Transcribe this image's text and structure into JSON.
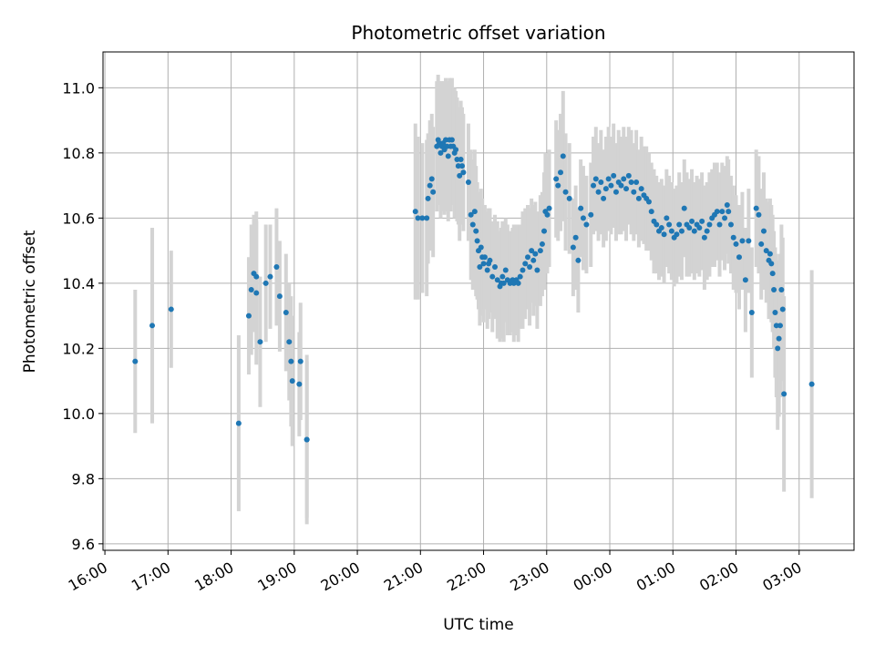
{
  "chart_data": {
    "type": "scatter",
    "title": "Photometric offset variation",
    "xlabel": "UTC time",
    "ylabel": "Photometric offset",
    "x_unit": "UTC time (hours; values past 24 are after midnight)",
    "xlim": [
      15.97,
      27.87
    ],
    "ylim": [
      9.58,
      11.11
    ],
    "yticks": [
      9.6,
      9.8,
      10.0,
      10.2,
      10.4,
      10.6,
      10.8,
      11.0
    ],
    "xticks": [
      {
        "value": 16,
        "label": "16:00"
      },
      {
        "value": 17,
        "label": "17:00"
      },
      {
        "value": 18,
        "label": "18:00"
      },
      {
        "value": 19,
        "label": "19:00"
      },
      {
        "value": 20,
        "label": "20:00"
      },
      {
        "value": 21,
        "label": "21:00"
      },
      {
        "value": 22,
        "label": "22:00"
      },
      {
        "value": 23,
        "label": "23:00"
      },
      {
        "value": 24,
        "label": "00:00"
      },
      {
        "value": 25,
        "label": "01:00"
      },
      {
        "value": 26,
        "label": "02:00"
      },
      {
        "value": 27,
        "label": "03:00"
      }
    ],
    "grid": true,
    "series_color": "#1f77b4",
    "errorbar_color": "#d3d3d3",
    "points": [
      [
        16.48,
        10.16,
        0.22
      ],
      [
        16.75,
        10.27,
        0.3
      ],
      [
        17.05,
        10.32,
        0.18
      ],
      [
        18.12,
        9.97,
        0.27
      ],
      [
        18.28,
        10.3,
        0.18
      ],
      [
        18.32,
        10.38,
        0.2
      ],
      [
        18.36,
        10.43,
        0.18
      ],
      [
        18.4,
        10.42,
        0.2
      ],
      [
        18.4,
        10.37,
        0.22
      ],
      [
        18.46,
        10.22,
        0.2
      ],
      [
        18.55,
        10.4,
        0.18
      ],
      [
        18.62,
        10.42,
        0.16
      ],
      [
        18.72,
        10.45,
        0.18
      ],
      [
        18.77,
        10.36,
        0.17
      ],
      [
        18.87,
        10.31,
        0.18
      ],
      [
        18.92,
        10.22,
        0.18
      ],
      [
        18.95,
        10.16,
        0.2
      ],
      [
        18.97,
        10.1,
        0.2
      ],
      [
        19.08,
        10.09,
        0.16
      ],
      [
        19.1,
        10.16,
        0.18
      ],
      [
        19.2,
        9.92,
        0.24
      ],
      [
        19.2,
        9.92,
        0.26
      ],
      [
        20.92,
        10.62,
        0.27
      ],
      [
        20.96,
        10.6,
        0.25
      ],
      [
        21.03,
        10.6,
        0.23
      ],
      [
        21.1,
        10.6,
        0.24
      ],
      [
        21.12,
        10.66,
        0.2
      ],
      [
        21.15,
        10.7,
        0.2
      ],
      [
        21.18,
        10.72,
        0.2
      ],
      [
        21.2,
        10.68,
        0.2
      ],
      [
        21.26,
        10.82,
        0.2
      ],
      [
        21.28,
        10.84,
        0.2
      ],
      [
        21.3,
        10.83,
        0.19
      ],
      [
        21.32,
        10.8,
        0.2
      ],
      [
        21.34,
        10.82,
        0.2
      ],
      [
        21.36,
        10.83,
        0.19
      ],
      [
        21.38,
        10.81,
        0.2
      ],
      [
        21.4,
        10.84,
        0.19
      ],
      [
        21.42,
        10.82,
        0.2
      ],
      [
        21.44,
        10.79,
        0.2
      ],
      [
        21.46,
        10.84,
        0.19
      ],
      [
        21.48,
        10.82,
        0.2
      ],
      [
        21.5,
        10.84,
        0.19
      ],
      [
        21.52,
        10.82,
        0.18
      ],
      [
        21.54,
        10.8,
        0.2
      ],
      [
        21.56,
        10.81,
        0.18
      ],
      [
        21.58,
        10.78,
        0.19
      ],
      [
        21.6,
        10.76,
        0.18
      ],
      [
        21.62,
        10.73,
        0.2
      ],
      [
        21.64,
        10.78,
        0.18
      ],
      [
        21.66,
        10.76,
        0.18
      ],
      [
        21.68,
        10.74,
        0.18
      ],
      [
        21.76,
        10.71,
        0.18
      ],
      [
        21.8,
        10.61,
        0.2
      ],
      [
        21.83,
        10.58,
        0.2
      ],
      [
        21.86,
        10.62,
        0.19
      ],
      [
        21.88,
        10.56,
        0.2
      ],
      [
        21.9,
        10.53,
        0.18
      ],
      [
        21.92,
        10.5,
        0.18
      ],
      [
        21.94,
        10.45,
        0.18
      ],
      [
        21.96,
        10.51,
        0.18
      ],
      [
        21.98,
        10.48,
        0.18
      ],
      [
        22.0,
        10.46,
        0.18
      ],
      [
        22.02,
        10.48,
        0.16
      ],
      [
        22.06,
        10.44,
        0.18
      ],
      [
        22.08,
        10.46,
        0.17
      ],
      [
        22.1,
        10.47,
        0.16
      ],
      [
        22.14,
        10.42,
        0.17
      ],
      [
        22.18,
        10.45,
        0.16
      ],
      [
        22.22,
        10.41,
        0.18
      ],
      [
        22.26,
        10.39,
        0.17
      ],
      [
        22.28,
        10.4,
        0.17
      ],
      [
        22.3,
        10.42,
        0.17
      ],
      [
        22.32,
        10.4,
        0.18
      ],
      [
        22.35,
        10.44,
        0.16
      ],
      [
        22.38,
        10.41,
        0.17
      ],
      [
        22.42,
        10.4,
        0.16
      ],
      [
        22.46,
        10.41,
        0.16
      ],
      [
        22.48,
        10.4,
        0.18
      ],
      [
        22.52,
        10.41,
        0.17
      ],
      [
        22.55,
        10.4,
        0.18
      ],
      [
        22.58,
        10.42,
        0.16
      ],
      [
        22.62,
        10.44,
        0.18
      ],
      [
        22.66,
        10.46,
        0.17
      ],
      [
        22.7,
        10.48,
        0.16
      ],
      [
        22.73,
        10.45,
        0.18
      ],
      [
        22.76,
        10.5,
        0.16
      ],
      [
        22.79,
        10.47,
        0.17
      ],
      [
        22.82,
        10.49,
        0.16
      ],
      [
        22.85,
        10.44,
        0.18
      ],
      [
        22.9,
        10.5,
        0.17
      ],
      [
        22.93,
        10.52,
        0.16
      ],
      [
        22.96,
        10.56,
        0.18
      ],
      [
        22.98,
        10.62,
        0.18
      ],
      [
        23.01,
        10.61,
        0.18
      ],
      [
        23.04,
        10.63,
        0.18
      ],
      [
        23.15,
        10.72,
        0.18
      ],
      [
        23.18,
        10.7,
        0.17
      ],
      [
        23.22,
        10.74,
        0.18
      ],
      [
        23.26,
        10.79,
        0.2
      ],
      [
        23.3,
        10.68,
        0.18
      ],
      [
        23.36,
        10.66,
        0.17
      ],
      [
        23.42,
        10.51,
        0.15
      ],
      [
        23.46,
        10.54,
        0.16
      ],
      [
        23.5,
        10.47,
        0.16
      ],
      [
        23.54,
        10.63,
        0.15
      ],
      [
        23.58,
        10.6,
        0.16
      ],
      [
        23.63,
        10.58,
        0.15
      ],
      [
        23.7,
        10.61,
        0.16
      ],
      [
        23.74,
        10.7,
        0.15
      ],
      [
        23.78,
        10.72,
        0.16
      ],
      [
        23.82,
        10.68,
        0.15
      ],
      [
        23.86,
        10.71,
        0.16
      ],
      [
        23.9,
        10.66,
        0.15
      ],
      [
        23.94,
        10.69,
        0.16
      ],
      [
        23.98,
        10.72,
        0.16
      ],
      [
        24.02,
        10.7,
        0.15
      ],
      [
        24.06,
        10.73,
        0.16
      ],
      [
        24.1,
        10.68,
        0.15
      ],
      [
        24.14,
        10.71,
        0.16
      ],
      [
        24.18,
        10.7,
        0.15
      ],
      [
        24.22,
        10.72,
        0.16
      ],
      [
        24.26,
        10.69,
        0.16
      ],
      [
        24.3,
        10.73,
        0.15
      ],
      [
        24.34,
        10.71,
        0.16
      ],
      [
        24.38,
        10.68,
        0.15
      ],
      [
        24.42,
        10.71,
        0.16
      ],
      [
        24.46,
        10.66,
        0.15
      ],
      [
        24.5,
        10.69,
        0.16
      ],
      [
        24.54,
        10.67,
        0.15
      ],
      [
        24.58,
        10.66,
        0.16
      ],
      [
        24.62,
        10.65,
        0.15
      ],
      [
        24.66,
        10.62,
        0.15
      ],
      [
        24.7,
        10.59,
        0.16
      ],
      [
        24.74,
        10.58,
        0.15
      ],
      [
        24.78,
        10.56,
        0.15
      ],
      [
        24.82,
        10.57,
        0.15
      ],
      [
        24.86,
        10.55,
        0.15
      ],
      [
        24.9,
        10.6,
        0.15
      ],
      [
        24.94,
        10.58,
        0.15
      ],
      [
        24.98,
        10.56,
        0.15
      ],
      [
        25.02,
        10.54,
        0.15
      ],
      [
        25.06,
        10.55,
        0.15
      ],
      [
        25.1,
        10.58,
        0.16
      ],
      [
        25.14,
        10.56,
        0.15
      ],
      [
        25.18,
        10.63,
        0.15
      ],
      [
        25.22,
        10.58,
        0.16
      ],
      [
        25.26,
        10.57,
        0.15
      ],
      [
        25.3,
        10.59,
        0.16
      ],
      [
        25.34,
        10.56,
        0.15
      ],
      [
        25.38,
        10.58,
        0.15
      ],
      [
        25.42,
        10.57,
        0.15
      ],
      [
        25.46,
        10.59,
        0.15
      ],
      [
        25.5,
        10.54,
        0.16
      ],
      [
        25.54,
        10.56,
        0.15
      ],
      [
        25.58,
        10.58,
        0.16
      ],
      [
        25.62,
        10.6,
        0.15
      ],
      [
        25.66,
        10.61,
        0.16
      ],
      [
        25.7,
        10.62,
        0.15
      ],
      [
        25.74,
        10.58,
        0.16
      ],
      [
        25.78,
        10.62,
        0.15
      ],
      [
        25.82,
        10.6,
        0.16
      ],
      [
        25.86,
        10.64,
        0.15
      ],
      [
        25.88,
        10.62,
        0.16
      ],
      [
        25.92,
        10.58,
        0.15
      ],
      [
        25.96,
        10.54,
        0.16
      ],
      [
        26.0,
        10.52,
        0.15
      ],
      [
        26.05,
        10.48,
        0.16
      ],
      [
        26.1,
        10.53,
        0.15
      ],
      [
        26.15,
        10.41,
        0.16
      ],
      [
        26.2,
        10.53,
        0.16
      ],
      [
        26.25,
        10.31,
        0.2
      ],
      [
        26.32,
        10.63,
        0.18
      ],
      [
        26.36,
        10.61,
        0.18
      ],
      [
        26.4,
        10.52,
        0.17
      ],
      [
        26.44,
        10.56,
        0.18
      ],
      [
        26.48,
        10.5,
        0.16
      ],
      [
        26.52,
        10.47,
        0.18
      ],
      [
        26.54,
        10.49,
        0.17
      ],
      [
        26.56,
        10.46,
        0.18
      ],
      [
        26.58,
        10.43,
        0.18
      ],
      [
        26.6,
        10.38,
        0.18
      ],
      [
        26.62,
        10.31,
        0.2
      ],
      [
        26.64,
        10.27,
        0.22
      ],
      [
        26.66,
        10.2,
        0.25
      ],
      [
        26.68,
        10.23,
        0.24
      ],
      [
        26.7,
        10.27,
        0.22
      ],
      [
        26.72,
        10.38,
        0.2
      ],
      [
        26.74,
        10.32,
        0.22
      ],
      [
        26.76,
        10.06,
        0.3
      ],
      [
        27.2,
        10.09,
        0.35
      ]
    ]
  }
}
